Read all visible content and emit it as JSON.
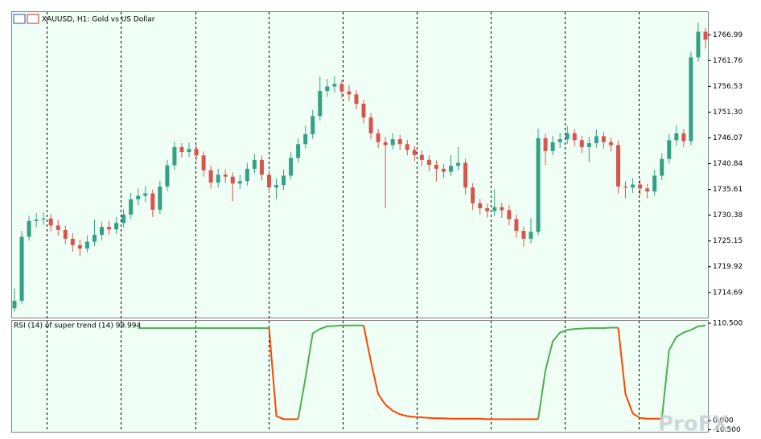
{
  "chart_data": [
    {
      "type": "candlestick",
      "title": "XAUUSD, H1:  Gold vs US Dollar",
      "open": [
        1711.5,
        1713.0,
        1726.0,
        1729.2,
        1729.5,
        1729.7,
        1728.3,
        1727.4,
        1725.6,
        1724.3,
        1723.6,
        1725.0,
        1726.4,
        1728.0,
        1727.5,
        1728.8,
        1730.5,
        1733.6,
        1734.3,
        1734.8,
        1731.5,
        1736.2,
        1740.5,
        1744.2,
        1743.2,
        1743.8,
        1742.5,
        1739.5,
        1737.0,
        1738.6,
        1738.2,
        1736.8,
        1737.3,
        1739.8,
        1741.6,
        1738.6,
        1736.0,
        1736.5,
        1738.4,
        1742.0,
        1744.8,
        1746.8,
        1750.5,
        1755.6,
        1756.5,
        1757.0,
        1755.5,
        1754.9,
        1753.0,
        1750.2,
        1747.0,
        1745.2,
        1744.6,
        1745.8,
        1744.8,
        1743.6,
        1742.6,
        1741.6,
        1740.6,
        1739.8,
        1739.2,
        1740.4,
        1741.0,
        1736.0,
        1732.8,
        1731.8,
        1731.2,
        1732.0,
        1731.4,
        1729.6,
        1727.2,
        1725.6,
        1727.0,
        1746.0,
        1743.4,
        1745.2,
        1745.8,
        1747.0,
        1745.6,
        1744.2,
        1745.0,
        1746.4,
        1745.2,
        1744.6,
        1736.2,
        1736.0,
        1736.6,
        1735.8,
        1735.2,
        1738.4,
        1741.8,
        1745.6,
        1747.0,
        1745.4,
        1762.4,
        1767.6
      ],
      "high": [
        1715.5,
        1727.2,
        1730.3,
        1730.8,
        1731.0,
        1730.6,
        1729.4,
        1728.3,
        1726.7,
        1725.4,
        1726.3,
        1729.5,
        1729.1,
        1729.2,
        1730.0,
        1731.6,
        1734.9,
        1735.8,
        1736.3,
        1735.6,
        1737.4,
        1741.6,
        1745.3,
        1745.0,
        1745.1,
        1744.6,
        1743.3,
        1740.4,
        1739.8,
        1739.7,
        1739.1,
        1738.6,
        1741.0,
        1742.8,
        1742.5,
        1739.5,
        1737.8,
        1739.6,
        1743.2,
        1746.0,
        1748.6,
        1751.7,
        1758.5,
        1758.0,
        1758.6,
        1757.9,
        1756.8,
        1755.7,
        1753.8,
        1751.1,
        1747.9,
        1746.3,
        1747.0,
        1746.7,
        1745.7,
        1744.4,
        1743.5,
        1742.5,
        1741.5,
        1740.7,
        1742.6,
        1744.2,
        1741.8,
        1736.9,
        1733.7,
        1732.7,
        1735.6,
        1732.9,
        1732.4,
        1730.5,
        1728.1,
        1729.8,
        1747.9,
        1746.9,
        1746.5,
        1747.1,
        1748.5,
        1747.9,
        1746.5,
        1746.3,
        1747.8,
        1747.3,
        1746.1,
        1745.5,
        1737.3,
        1737.9,
        1737.5,
        1736.7,
        1739.6,
        1742.9,
        1746.8,
        1748.6,
        1747.9,
        1763.6,
        1769.5,
        1768.4
      ],
      "low": [
        1710.8,
        1712.4,
        1725.2,
        1727.9,
        1728.4,
        1727.1,
        1726.2,
        1724.5,
        1723.0,
        1722.1,
        1722.8,
        1724.1,
        1725.3,
        1726.4,
        1726.6,
        1727.9,
        1729.6,
        1732.4,
        1733.0,
        1730.0,
        1730.6,
        1735.3,
        1739.6,
        1742.1,
        1742.2,
        1741.4,
        1738.2,
        1735.8,
        1736.0,
        1736.9,
        1733.2,
        1735.7,
        1736.4,
        1738.9,
        1737.4,
        1734.9,
        1733.6,
        1735.5,
        1737.6,
        1741.1,
        1743.9,
        1745.9,
        1749.6,
        1754.4,
        1755.3,
        1754.2,
        1753.6,
        1751.9,
        1749.0,
        1745.8,
        1744.0,
        1731.8,
        1743.7,
        1743.6,
        1742.5,
        1741.4,
        1740.3,
        1739.3,
        1737.2,
        1737.9,
        1738.3,
        1739.5,
        1734.6,
        1731.4,
        1730.5,
        1729.9,
        1730.2,
        1729.8,
        1728.3,
        1725.8,
        1724.0,
        1724.7,
        1726.3,
        1740.5,
        1742.5,
        1744.0,
        1744.8,
        1744.3,
        1743.0,
        1741.1,
        1744.1,
        1743.9,
        1743.3,
        1734.8,
        1733.9,
        1734.9,
        1734.5,
        1733.8,
        1734.3,
        1737.5,
        1740.9,
        1744.5,
        1744.2,
        1744.6,
        1761.5,
        1764.2
      ],
      "close": [
        1713.0,
        1726.0,
        1729.2,
        1729.5,
        1729.7,
        1728.3,
        1727.4,
        1725.6,
        1724.3,
        1723.6,
        1725.0,
        1726.4,
        1728.0,
        1727.5,
        1728.8,
        1730.5,
        1733.6,
        1734.3,
        1734.8,
        1731.5,
        1736.2,
        1740.5,
        1744.2,
        1743.2,
        1743.8,
        1742.5,
        1739.5,
        1737.0,
        1738.6,
        1738.2,
        1736.8,
        1737.3,
        1739.8,
        1741.6,
        1738.6,
        1736.0,
        1736.5,
        1738.4,
        1742.0,
        1744.8,
        1746.8,
        1750.5,
        1755.6,
        1756.5,
        1757.0,
        1755.5,
        1754.9,
        1753.0,
        1750.2,
        1747.0,
        1745.2,
        1744.6,
        1745.8,
        1744.8,
        1743.6,
        1742.6,
        1741.6,
        1740.6,
        1739.8,
        1739.2,
        1740.4,
        1741.0,
        1736.0,
        1732.8,
        1731.8,
        1731.2,
        1732.0,
        1731.4,
        1729.6,
        1727.2,
        1725.6,
        1727.0,
        1746.0,
        1743.4,
        1745.2,
        1745.8,
        1747.0,
        1745.6,
        1744.2,
        1745.0,
        1746.4,
        1745.2,
        1744.6,
        1736.2,
        1736.0,
        1736.6,
        1735.8,
        1735.2,
        1738.4,
        1741.8,
        1745.6,
        1747.0,
        1745.4,
        1762.4,
        1767.6,
        1766.0
      ],
      "up_color": "#34a085",
      "down_color": "#d9534f",
      "ylim": [
        1709.6,
        1771.6
      ],
      "yticks": [
        1766.99,
        1761.76,
        1756.53,
        {
          "value": 1751.3,
          "label": "1751.30"
        },
        1746.07,
        1740.84,
        1735.61,
        1730.38,
        1725.15,
        1719.92,
        1714.69
      ]
    },
    {
      "type": "line",
      "title": "RSI (14) of super trend (14) 99.994",
      "series": [
        {
          "color": "#4caf50",
          "values": [
            null,
            null,
            null,
            null,
            null,
            null,
            null,
            null,
            null,
            null,
            null,
            null,
            null,
            null,
            null,
            null,
            null,
            105,
            105,
            105,
            105,
            105,
            105,
            105,
            105,
            105,
            105,
            105,
            105,
            105,
            105,
            105,
            105,
            105,
            105,
            105,
            null,
            null,
            null,
            1.5,
            48,
            99,
            104,
            107,
            107.5,
            108,
            108,
            108,
            108,
            null,
            null,
            null,
            null,
            null,
            null,
            null,
            null,
            null,
            null,
            null,
            null,
            null,
            null,
            null,
            null,
            null,
            null,
            null,
            null,
            null,
            null,
            null,
            1.5,
            57,
            90,
            100,
            103,
            104,
            104.5,
            105,
            105,
            105,
            105.5,
            105.5,
            null,
            null,
            null,
            null,
            null,
            2,
            80,
            95,
            100,
            103,
            107,
            108
          ]
        },
        {
          "color": "#ff4500",
          "values": [
            null,
            null,
            null,
            null,
            null,
            null,
            null,
            null,
            null,
            null,
            null,
            null,
            null,
            null,
            null,
            null,
            null,
            null,
            null,
            null,
            null,
            null,
            null,
            null,
            null,
            null,
            null,
            null,
            null,
            null,
            null,
            null,
            null,
            null,
            null,
            105,
            5,
            1.5,
            1.5,
            1.5,
            null,
            null,
            null,
            null,
            null,
            null,
            null,
            null,
            108,
            67,
            30,
            18,
            11,
            7,
            5,
            4,
            3.5,
            3,
            2.5,
            2.5,
            2,
            2,
            2,
            2,
            2,
            1.5,
            1.5,
            1.5,
            1.5,
            1.5,
            1.5,
            1.5,
            1.5,
            null,
            null,
            null,
            null,
            null,
            null,
            null,
            null,
            null,
            null,
            105.5,
            30,
            8,
            3,
            2,
            2,
            2,
            null,
            null,
            null,
            null,
            null,
            null
          ]
        }
      ],
      "ylim": [
        -12.8,
        114.2
      ],
      "yticks": [
        {
          "value": 110.5,
          "label": "110.500"
        },
        {
          "value": 0,
          "label": "0.000"
        },
        {
          "value": -10.5,
          "label": "-10.500"
        }
      ]
    }
  ],
  "watermark": "ProFX"
}
